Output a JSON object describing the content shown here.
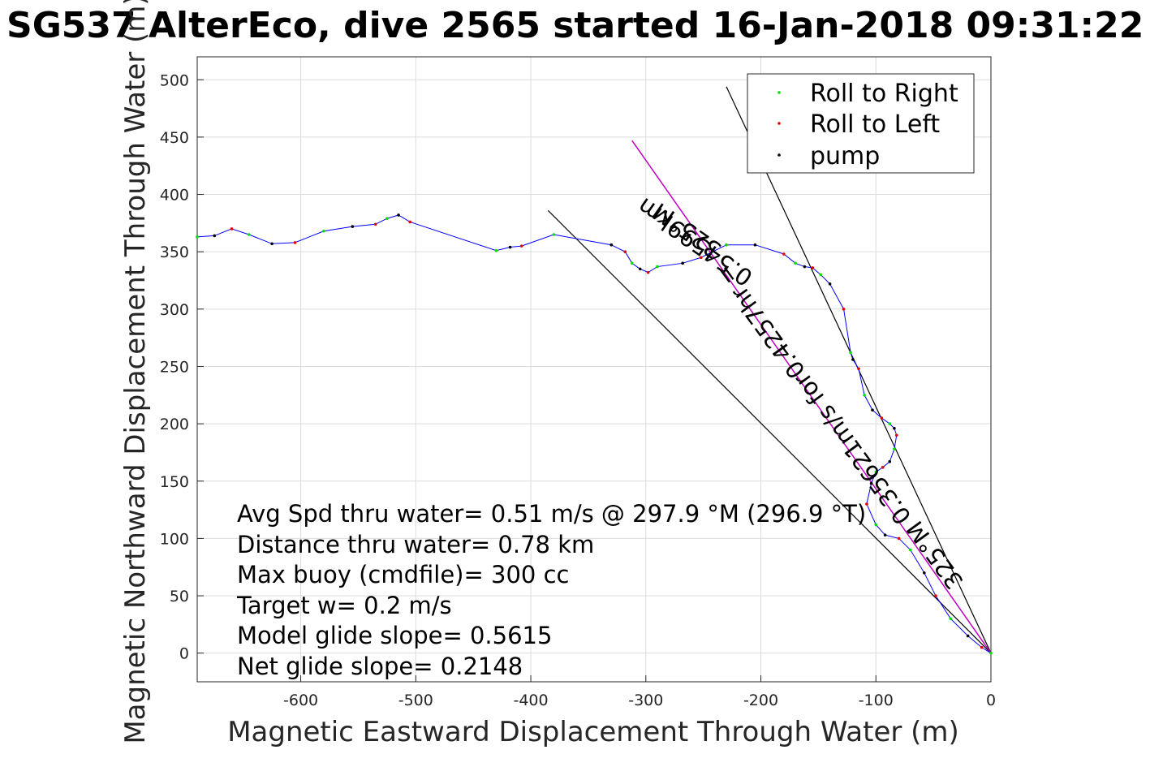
{
  "chart_data": {
    "type": "line",
    "title": "SG537 AlterEco, dive 2565 started 16-Jan-2018 09:31:22",
    "xlabel": "Magnetic Eastward Displacement Through Water (m)",
    "ylabel": "Magnetic Northward Displacement Through Water (m)",
    "xlim": [
      -690,
      0
    ],
    "ylim": [
      -25,
      520
    ],
    "xticks": [
      -600,
      -500,
      -400,
      -300,
      -200,
      -100,
      0
    ],
    "yticks": [
      0,
      50,
      100,
      150,
      200,
      250,
      300,
      350,
      400,
      450,
      500
    ],
    "grid": true,
    "legend": {
      "placement": "top-right",
      "entries": [
        {
          "label": "Roll to Right",
          "color": "#00e000"
        },
        {
          "label": "Roll to Left",
          "color": "#e00000"
        },
        {
          "label": "pump",
          "color": "#000000"
        }
      ]
    },
    "track": {
      "color": "#0000ff",
      "x": [
        0,
        -8,
        -20,
        -35,
        -48,
        -58,
        -70,
        -80,
        -92,
        -100,
        -108,
        -104,
        -100,
        -94,
        -88,
        -84,
        -82,
        -84,
        -88,
        -95,
        -103,
        -110,
        -115,
        -120,
        -122,
        -128,
        -140,
        -148,
        -155,
        -162,
        -170,
        -180,
        -205,
        -230,
        -252,
        -268,
        -290,
        -298,
        -305,
        -312,
        -318,
        -330,
        -380,
        -408,
        -418,
        -430,
        -505,
        -515,
        -525,
        -535,
        -555,
        -580,
        -605,
        -625,
        -645,
        -660,
        -675,
        -690
      ],
      "y": [
        0,
        5,
        15,
        30,
        50,
        70,
        90,
        100,
        103,
        112,
        130,
        148,
        158,
        162,
        167,
        178,
        190,
        196,
        200,
        205,
        212,
        225,
        248,
        256,
        262,
        300,
        322,
        330,
        336,
        337,
        340,
        348,
        356,
        356,
        345,
        340,
        337,
        332,
        335,
        340,
        350,
        356,
        365,
        355,
        354,
        351,
        376,
        382,
        379,
        374,
        372,
        368,
        358,
        357,
        365,
        370,
        364,
        363
      ]
    },
    "rays": [
      {
        "from": [
          0,
          0
        ],
        "to": [
          -230,
          494
        ]
      },
      {
        "from": [
          0,
          0
        ],
        "to": [
          -385,
          386
        ]
      }
    ],
    "heading_line": {
      "color": "#c000c0",
      "from": [
        0,
        0
      ],
      "to": [
        -312,
        447
      ]
    },
    "annotations": [
      "325°M",
      "0.54599km",
      "0.35621m/s for0.4257hr =",
      "325°M"
    ],
    "stats": [
      "Avg Spd thru water=  0.51 m/s @ 297.9 °M (296.9 °T)",
      "Distance thru water=  0.78 km",
      "Max buoy (cmdfile)= 300 cc",
      "Target w= 0.2 m/s",
      "Model glide slope= 0.5615",
      "Net glide slope= 0.2148"
    ]
  }
}
